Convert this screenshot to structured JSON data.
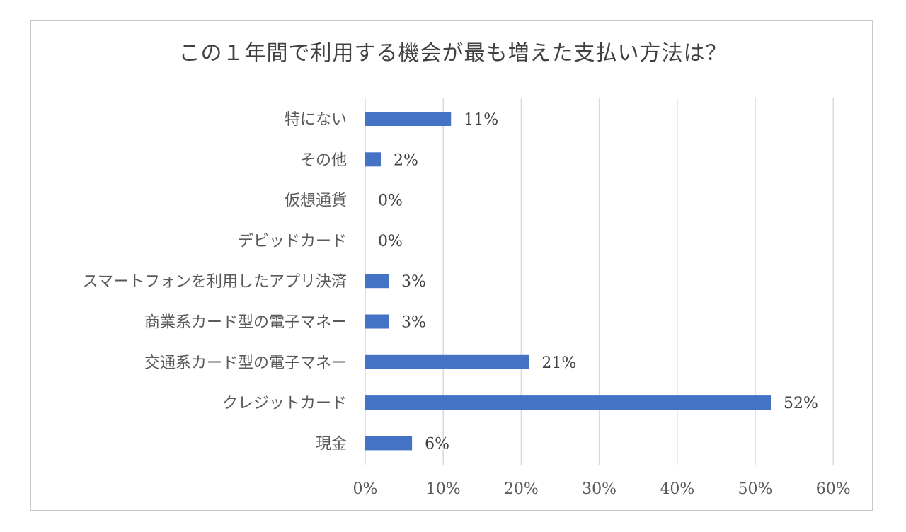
{
  "chart_data": {
    "type": "bar",
    "orientation": "horizontal",
    "title": "この１年間で利用する機会が最も増えた支払い方法は？",
    "xlabel": "",
    "ylabel": "",
    "categories": [
      "特にない",
      "その他",
      "仮想通貨",
      "デビッドカード",
      "スマートフォンを利用したアプリ決済",
      "商業系カード型の電子マネー",
      "交通系カード型の電子マネー",
      "クレジットカード",
      "現金"
    ],
    "values": [
      11,
      2,
      0,
      0,
      3,
      3,
      21,
      52,
      6
    ],
    "data_labels": [
      "11%",
      "2%",
      "0%",
      "0%",
      "3%",
      "3%",
      "21%",
      "52%",
      "6%"
    ],
    "xlim": [
      0,
      60
    ],
    "x_ticks": [
      0,
      10,
      20,
      30,
      40,
      50,
      60
    ],
    "x_tick_labels": [
      "0%",
      "10%",
      "20%",
      "30%",
      "40%",
      "50%",
      "60%"
    ],
    "grid": true,
    "bar_color": "#4472c4",
    "legend": "none"
  }
}
